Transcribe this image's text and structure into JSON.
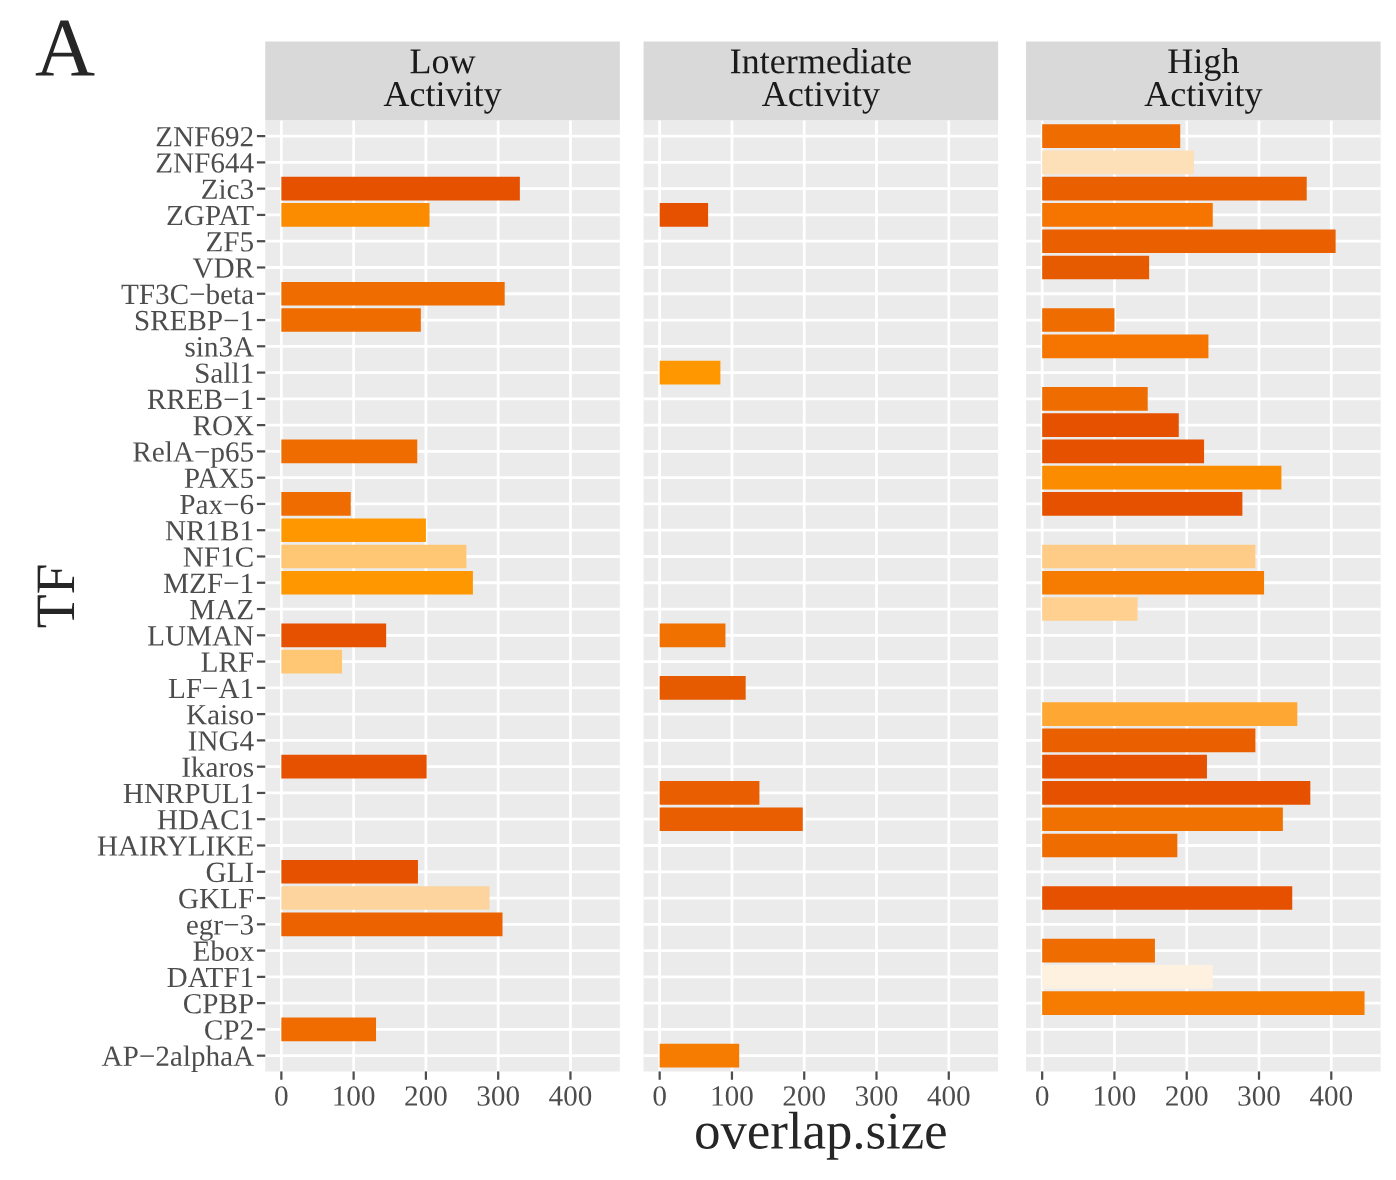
{
  "chart_data": [
    {
      "type": "bar",
      "orientation": "horizontal",
      "title": "Low\nActivity",
      "ylabel": "TF",
      "annotations": [
        "A"
      ],
      "grid": true,
      "xlim": [
        -22.3,
        468.3
      ],
      "xticks": [
        0,
        100,
        200,
        300,
        400
      ],
      "categories": [
        "ZNF692",
        "ZNF644",
        "Zic3",
        "ZGPAT",
        "ZF5",
        "VDR",
        "TF3C−beta",
        "SREBP−1",
        "sin3A",
        "Sall1",
        "RREB−1",
        "ROX",
        "RelA−p65",
        "PAX5",
        "Pax−6",
        "NR1B1",
        "NF1C",
        "MZF−1",
        "MAZ",
        "LUMAN",
        "LRF",
        "LF−A1",
        "Kaiso",
        "ING4",
        "Ikaros",
        "HNRPUL1",
        "HDAC1",
        "HAIRYLIKE",
        "GLI",
        "GKLF",
        "egr−3",
        "Ebox",
        "DATF1",
        "CPBP",
        "CP2",
        "AP−2alphaA"
      ],
      "values": [
        null,
        null,
        330,
        205,
        null,
        null,
        309,
        193,
        null,
        null,
        null,
        null,
        188,
        null,
        96,
        200,
        256,
        265,
        null,
        145,
        84,
        null,
        null,
        null,
        201,
        null,
        null,
        null,
        189,
        288,
        306,
        null,
        null,
        null,
        131,
        null
      ],
      "colors": [
        null,
        null,
        "#e65100",
        "#fb8c00",
        null,
        null,
        "#ef6c00",
        "#ef6c00",
        null,
        null,
        null,
        null,
        "#ef6c00",
        null,
        "#ef6c00",
        "#ff9800",
        "#ffc774",
        "#ff9800",
        null,
        "#e65100",
        "#ffc774",
        null,
        null,
        null,
        "#e65100",
        null,
        null,
        null,
        "#e65100",
        "#fdd49e",
        "#ec6200",
        null,
        null,
        null,
        "#f06c00",
        null
      ]
    },
    {
      "type": "bar",
      "orientation": "horizontal",
      "title": "Intermediate\nActivity",
      "xlabel": "overlap.size",
      "grid": true,
      "tick_labels": "x",
      "xlim": [
        -22.3,
        468.3
      ],
      "xticks": [
        0,
        100,
        200,
        300,
        400
      ],
      "values": [
        null,
        null,
        null,
        67,
        null,
        null,
        null,
        null,
        null,
        84,
        null,
        null,
        null,
        null,
        null,
        null,
        null,
        null,
        null,
        91,
        null,
        119,
        null,
        null,
        null,
        138,
        198,
        null,
        null,
        null,
        null,
        null,
        null,
        null,
        null,
        110
      ],
      "colors": [
        null,
        null,
        null,
        "#e65100",
        null,
        null,
        null,
        null,
        null,
        "#ff9800",
        null,
        null,
        null,
        null,
        null,
        null,
        null,
        null,
        null,
        "#f07000",
        null,
        "#e65a00",
        null,
        null,
        null,
        "#e85e00",
        "#e85e00",
        null,
        null,
        null,
        null,
        null,
        null,
        null,
        null,
        "#f57c00"
      ]
    },
    {
      "type": "bar",
      "orientation": "horizontal",
      "title": "High\nActivity",
      "grid": true,
      "tick_labels": "x",
      "xlim": [
        -22.3,
        468.3
      ],
      "xticks": [
        0,
        100,
        200,
        300,
        400
      ],
      "values": [
        191,
        210,
        366,
        236,
        406,
        148,
        null,
        100,
        230,
        null,
        146,
        189,
        224,
        331,
        277,
        null,
        295,
        307,
        132,
        null,
        null,
        null,
        353,
        295,
        228,
        371,
        333,
        187,
        null,
        346,
        null,
        156,
        236,
        446,
        null,
        null
      ],
      "colors": [
        "#ef6c00",
        "#fde0b8",
        "#ea5f00",
        "#f57500",
        "#ea5f00",
        "#e65a00",
        null,
        "#ef6c00",
        "#f57500",
        null,
        "#ef6c00",
        "#e65100",
        "#e65100",
        "#fb8c00",
        "#e65100",
        null,
        "#ffcc88",
        "#f57c00",
        "#ffd090",
        null,
        null,
        null,
        "#ffa733",
        "#ea5f00",
        "#e65100",
        "#e65100",
        "#f07000",
        "#ef6c00",
        null,
        "#e65100",
        null,
        "#ef6c00",
        "#fff1e0",
        "#f57c00",
        null,
        null
      ]
    }
  ]
}
